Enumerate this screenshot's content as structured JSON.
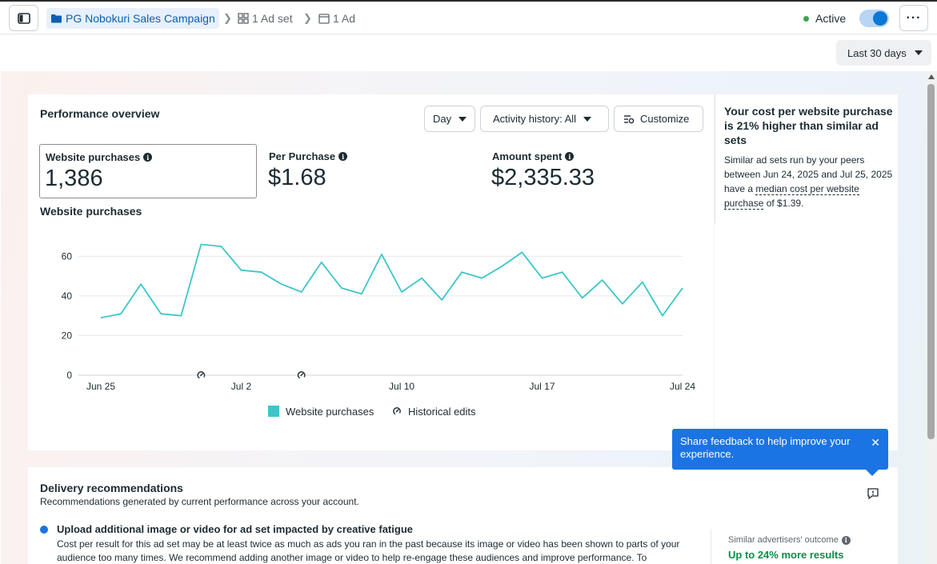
{
  "breadcrumb": {
    "campaign": "PG Nobokuri Sales Campaign",
    "adset": "1 Ad set",
    "ad": "1 Ad"
  },
  "status": {
    "label": "Active",
    "dot_color": "#36a64f",
    "toggle_on": true
  },
  "date_range": {
    "label": "Last 30 days"
  },
  "performance": {
    "title": "Performance overview",
    "granularity": "Day",
    "activity_filter": "Activity history: All",
    "customize_label": "Customize",
    "metrics": [
      {
        "label": "Website purchases",
        "value": "1,386",
        "selected": true
      },
      {
        "label": "Per Purchase",
        "value": "$1.68",
        "selected": false
      },
      {
        "label": "Amount spent",
        "value": "$2,335.33",
        "selected": false
      }
    ],
    "chart_title": "Website purchases"
  },
  "chart_data": {
    "type": "line",
    "title": "Website purchases",
    "x_tick_labels": [
      "Jun 25",
      "Jul 2",
      "Jul 10",
      "Jul 17",
      "Jul 24"
    ],
    "x_tick_index": [
      0,
      7,
      15,
      22,
      29
    ],
    "y_ticks": [
      0,
      20,
      40,
      60
    ],
    "ylim": [
      0,
      65
    ],
    "grid": true,
    "legend": {
      "placement": "bottom-center",
      "entries": [
        "Website purchases",
        "Historical edits"
      ]
    },
    "series": [
      {
        "name": "Website purchases",
        "color": "#3cc6c9",
        "values": [
          29,
          31,
          46,
          31,
          30,
          66,
          65,
          53,
          52,
          46,
          42,
          57,
          44,
          41,
          61,
          42,
          49,
          38,
          52,
          49,
          55,
          62,
          49,
          52,
          39,
          48,
          36,
          47,
          30,
          44
        ]
      }
    ],
    "historical_edit_index": [
      5,
      10
    ]
  },
  "insight": {
    "headline": "Your cost per website purchase is 21% higher than similar ad sets",
    "body_pre": "Similar ad sets run by your peers between Jun 24, 2025 and Jul 25, 2025 have a ",
    "body_link": "median cost per website purchase",
    "body_post": " of $1.39."
  },
  "toast": {
    "message": "Share feedback to help improve your experience."
  },
  "delivery": {
    "title": "Delivery recommendations",
    "subtitle": "Recommendations generated by current performance across your account.",
    "rec_title": "Upload additional image or video for ad set impacted by creative fatigue",
    "rec_body": "Cost per result for this ad set may be at least twice as much as ads you ran in the past because its image or video has been shown to parts of your audience too many times. We recommend adding another image or video to help re-engage these audiences and improve performance. To",
    "outcome_label": "Similar advertisers' outcome",
    "outcome_value": "Up to 24% more results"
  }
}
